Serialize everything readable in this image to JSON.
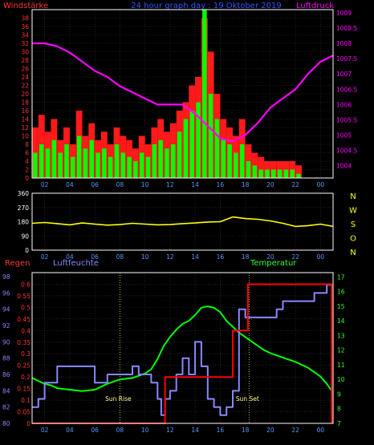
{
  "header": {
    "left_label": "Windstärke",
    "center_label": "24 hour graph day : 19 Oktober 2019",
    "right_label": "Luftdruck"
  },
  "colors": {
    "background": "#000000",
    "frame": "#ffffff",
    "grid": "#3a3a3a",
    "wind_gust": "#ff1a1a",
    "wind_avg": "#00ff00",
    "pressure": "#ff00ff",
    "direction": "#ffff00",
    "rain": "#ff0000",
    "humidity": "#8888ff",
    "temperature": "#00ff00",
    "wind_axis": "#ff3333",
    "pressure_axis": "#ff00ff",
    "compass": "#ffff00",
    "hour_ticks": "#5599ff",
    "rain_axis": "#ff3333",
    "humidity_axis": "#8888ff",
    "temp_axis": "#33ff33",
    "title": "#3355ff"
  },
  "compass_letters": [
    "N",
    "W",
    "S",
    "O",
    "N"
  ],
  "chart_data": [
    {
      "id": "wind_pressure",
      "type": "bar",
      "title": "24 hour graph day : 19 Oktober 2019",
      "y_left_label": "Windstärke",
      "y_right_label": "Luftdruck",
      "x_ticks": [
        "02",
        "04",
        "06",
        "08",
        "10",
        "12",
        "14",
        "16",
        "18",
        "20",
        "22",
        "00"
      ],
      "x_range": [
        1,
        25
      ],
      "y_left_range": [
        0,
        40
      ],
      "y_left_ticks": [
        0,
        2,
        4,
        6,
        8,
        10,
        12,
        14,
        16,
        18,
        20,
        22,
        24,
        26,
        28,
        30,
        32,
        34,
        36,
        38
      ],
      "y_right_range": [
        1003.6,
        1009.1
      ],
      "y_right_ticks": [
        1004,
        1004.5,
        1005,
        1005.5,
        1006,
        1006.5,
        1007,
        1007.5,
        1008,
        1008.5,
        1009
      ],
      "y_right_tick_labels": [
        "1004",
        "1004.5",
        "1005",
        "1005.5",
        "1006",
        "1006.5",
        "1007",
        "1007.5",
        "1008",
        "1008.5",
        "1009"
      ],
      "series": [
        {
          "name": "Windböen",
          "kind": "bars",
          "x": [
            1.0,
            1.5,
            2.0,
            2.5,
            3.0,
            3.5,
            4.0,
            4.5,
            5.0,
            5.5,
            6.0,
            6.5,
            7.0,
            7.5,
            8.0,
            8.5,
            9.0,
            9.5,
            10.0,
            10.5,
            11.0,
            11.5,
            12.0,
            12.5,
            13.0,
            13.5,
            14.0,
            14.5,
            15.0,
            15.5,
            16.0,
            16.5,
            17.0,
            17.5,
            18.0,
            18.5,
            19.0,
            19.5,
            20.0,
            20.5,
            21.0,
            21.5,
            22.0,
            22.5,
            23.0,
            23.5,
            24.0,
            24.5
          ],
          "values": [
            12,
            15,
            11,
            14,
            9,
            12,
            8,
            16,
            10,
            13,
            9,
            11,
            8,
            12,
            10,
            9,
            7,
            10,
            8,
            12,
            14,
            11,
            13,
            16,
            18,
            22,
            24,
            38,
            30,
            20,
            14,
            12,
            10,
            14,
            8,
            6,
            5,
            4,
            4,
            4,
            4,
            4,
            3,
            0,
            0,
            0,
            0,
            0
          ]
        },
        {
          "name": "Windstärke",
          "kind": "bars",
          "x": [
            1.0,
            1.5,
            2.0,
            2.5,
            3.0,
            3.5,
            4.0,
            4.5,
            5.0,
            5.5,
            6.0,
            6.5,
            7.0,
            7.5,
            8.0,
            8.5,
            9.0,
            9.5,
            10.0,
            10.5,
            11.0,
            11.5,
            12.0,
            12.5,
            13.0,
            13.5,
            14.0,
            14.5,
            15.0,
            15.5,
            16.0,
            16.5,
            17.0,
            17.5,
            18.0,
            18.5,
            19.0,
            19.5,
            20.0,
            20.5,
            21.0,
            21.5,
            22.0,
            22.5,
            23.0,
            23.5,
            24.0,
            24.5
          ],
          "values": [
            6,
            8,
            7,
            9,
            6,
            8,
            5,
            10,
            7,
            9,
            6,
            7,
            5,
            8,
            6,
            5,
            4,
            6,
            5,
            8,
            9,
            7,
            8,
            11,
            14,
            16,
            18,
            40,
            20,
            14,
            9,
            8,
            6,
            8,
            4,
            3,
            2,
            2,
            2,
            2,
            2,
            2,
            1,
            0,
            0,
            0,
            0,
            0
          ]
        },
        {
          "name": "Luftdruck",
          "kind": "line",
          "axis": "right",
          "x": [
            1,
            2,
            3,
            4,
            5,
            6,
            7,
            8,
            9,
            10,
            11,
            12,
            13,
            14,
            15,
            16,
            17,
            18,
            19,
            20,
            21,
            22,
            23,
            24,
            25
          ],
          "values": [
            1008.0,
            1008.0,
            1007.9,
            1007.7,
            1007.4,
            1007.1,
            1006.9,
            1006.6,
            1006.4,
            1006.2,
            1006.0,
            1006.0,
            1006.0,
            1005.7,
            1005.3,
            1004.9,
            1004.8,
            1005.0,
            1005.4,
            1005.9,
            1006.2,
            1006.5,
            1007.0,
            1007.4,
            1007.6
          ]
        }
      ]
    },
    {
      "id": "direction",
      "type": "line",
      "x_ticks": [
        "02",
        "04",
        "06",
        "08",
        "10",
        "12",
        "14",
        "16",
        "18",
        "20",
        "22",
        "00"
      ],
      "x_range": [
        1,
        25
      ],
      "y_range": [
        0,
        360
      ],
      "y_ticks": [
        0,
        90,
        180,
        270,
        360
      ],
      "series": [
        {
          "name": "Windrichtung",
          "x": [
            1,
            2,
            3,
            4,
            5,
            6,
            7,
            8,
            9,
            10,
            11,
            12,
            13,
            14,
            15,
            16,
            17,
            18,
            19,
            20,
            21,
            22,
            23,
            24,
            25
          ],
          "values": [
            170,
            175,
            168,
            160,
            172,
            165,
            158,
            162,
            170,
            165,
            160,
            162,
            168,
            172,
            178,
            180,
            210,
            200,
            195,
            185,
            170,
            150,
            155,
            165,
            150
          ]
        }
      ]
    },
    {
      "id": "rain_humidity_temp",
      "type": "line",
      "x_ticks": [
        "02",
        "04",
        "06",
        "08",
        "10",
        "12",
        "14",
        "16",
        "18",
        "20",
        "22",
        "00"
      ],
      "x_range": [
        1,
        25
      ],
      "y_left_label": "Regen",
      "y_mid_label": "Luftfeuchte",
      "y_right_label": "Temperatur",
      "rain_range": [
        0,
        0.65
      ],
      "rain_ticks": [
        0,
        0.05,
        0.1,
        0.15,
        0.2,
        0.25,
        0.3,
        0.35,
        0.4,
        0.45,
        0.5,
        0.55,
        0.6
      ],
      "rain_tick_labels": [
        "0",
        "0.05",
        "0.1",
        "0.15",
        "0.2",
        "0.25",
        "0.3",
        "0.35",
        "0.4",
        "0.45",
        "0.5",
        "0.55",
        "0.6"
      ],
      "humidity_range": [
        80,
        98.5
      ],
      "humidity_ticks": [
        80,
        82,
        84,
        86,
        88,
        90,
        92,
        94,
        96,
        98
      ],
      "humidity_tick_labels": [
        "80",
        "82",
        "84",
        "86",
        "88",
        "90",
        "92",
        "94",
        "96",
        "98"
      ],
      "temp_range": [
        7,
        17.3
      ],
      "temp_ticks": [
        7,
        8,
        9,
        10,
        11,
        12,
        13,
        14,
        15,
        16,
        17
      ],
      "annotations": [
        {
          "text": "Sun Rise",
          "x": 8.0
        },
        {
          "text": "Sun Set",
          "x": 18.3
        }
      ],
      "series": [
        {
          "name": "Regen",
          "axis": "rain",
          "x": [
            1,
            11.6,
            11.6,
            17,
            17,
            18.2,
            18.2,
            24.9,
            24.9
          ],
          "values": [
            0,
            0,
            0.2,
            0.2,
            0.4,
            0.4,
            0.6,
            0.6,
            0
          ]
        },
        {
          "name": "Luftfeuchte",
          "axis": "humidity",
          "x": [
            1,
            1.5,
            2,
            2.5,
            3,
            4,
            5,
            6,
            7,
            8,
            9,
            9.5,
            10,
            10.5,
            11,
            11.3,
            11.6,
            12,
            12.5,
            13,
            13.5,
            14,
            14.5,
            15,
            15.5,
            16,
            16.5,
            17,
            17.5,
            18,
            18.5,
            19,
            19.5,
            20,
            20.5,
            21,
            21.5,
            22,
            22.5,
            23,
            23.5,
            24,
            24.5,
            25
          ],
          "values": [
            82,
            83,
            85,
            85,
            87,
            87,
            87,
            85,
            86,
            86,
            87,
            86,
            86,
            85,
            83,
            81,
            83,
            84,
            86,
            88,
            86,
            90,
            87,
            83,
            82,
            81,
            82,
            84,
            94,
            93,
            93,
            93,
            93,
            93,
            94,
            95,
            95,
            95,
            95,
            95,
            96,
            96,
            97,
            97
          ]
        },
        {
          "name": "Temperatur",
          "axis": "temp",
          "x": [
            1,
            1.5,
            2,
            2.5,
            3,
            4,
            5,
            6,
            7,
            8,
            9,
            10,
            10.5,
            11,
            11.5,
            12,
            12.5,
            13,
            13.5,
            14,
            14.5,
            15,
            15.5,
            16,
            16.5,
            17,
            17.5,
            18,
            18.5,
            19,
            19.5,
            20,
            21,
            22,
            23,
            23.5,
            24,
            24.5,
            25
          ],
          "values": [
            10.1,
            9.9,
            9.7,
            9.6,
            9.4,
            9.3,
            9.2,
            9.3,
            9.7,
            10.0,
            10.1,
            10.4,
            10.7,
            11.4,
            12.3,
            12.9,
            13.4,
            13.8,
            14.0,
            14.4,
            14.9,
            15.0,
            14.9,
            14.6,
            14.0,
            13.6,
            13.2,
            12.9,
            12.6,
            12.3,
            12.0,
            11.8,
            11.5,
            11.2,
            10.8,
            10.5,
            10.2,
            9.7,
            9.1
          ]
        }
      ]
    }
  ]
}
